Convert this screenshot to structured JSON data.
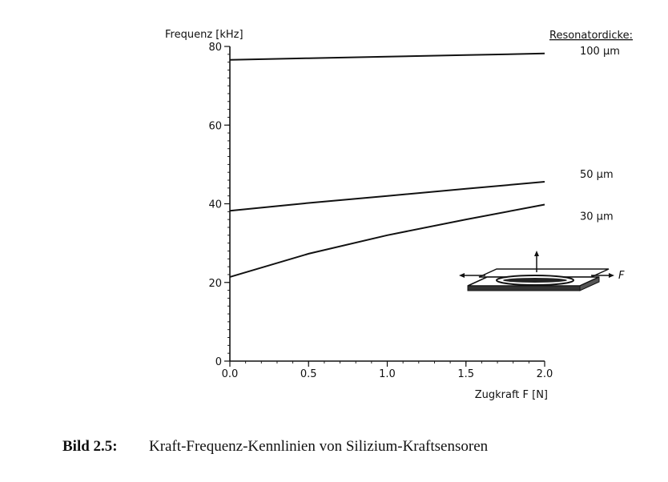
{
  "chart_data": {
    "type": "line",
    "ylabel": "Frequenz [kHz]",
    "xlabel": "Zugkraft F [N]",
    "legend_title": "Resonatordicke:",
    "xlim": [
      0,
      2
    ],
    "ylim": [
      0,
      80
    ],
    "x_ticks": [
      "0.0",
      "0.5",
      "1.0",
      "1.5",
      "2.0"
    ],
    "y_ticks": [
      "0",
      "20",
      "40",
      "60",
      "80"
    ],
    "series": [
      {
        "name": "100 µm",
        "x": [
          0,
          0.5,
          1.0,
          1.5,
          2.0
        ],
        "values": [
          76.6,
          77.0,
          77.4,
          77.8,
          78.2
        ]
      },
      {
        "name": "50 µm",
        "x": [
          0,
          0.5,
          1.0,
          1.5,
          2.0
        ],
        "values": [
          38.2,
          40.2,
          42.0,
          43.8,
          45.6
        ]
      },
      {
        "name": "30 µm",
        "x": [
          0,
          0.5,
          1.0,
          1.5,
          2.0
        ],
        "values": [
          21.4,
          27.3,
          32.0,
          36.0,
          39.8
        ]
      }
    ],
    "inset_label": "F"
  },
  "caption": {
    "number": "Bild 2.5:",
    "text": "Kraft-Frequenz-Kennlinien von Silizium-Kraftsensoren"
  }
}
